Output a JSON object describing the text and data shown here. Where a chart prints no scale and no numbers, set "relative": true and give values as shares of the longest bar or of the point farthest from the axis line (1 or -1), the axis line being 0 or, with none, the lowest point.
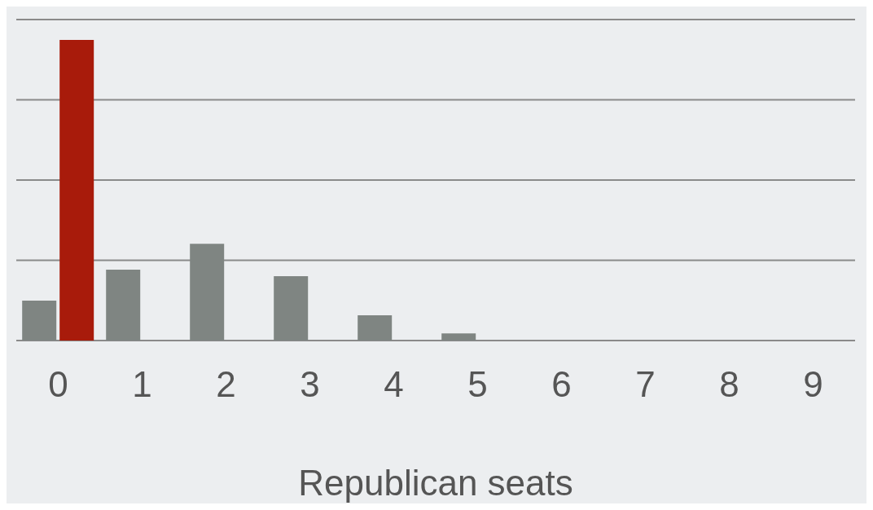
{
  "chart_data": {
    "type": "bar",
    "xlabel": "Republican seats",
    "categories": [
      "0",
      "1",
      "2",
      "3",
      "4",
      "5",
      "6",
      "7",
      "8",
      "9"
    ],
    "relative": true,
    "grid": "y",
    "legend": false,
    "series": [
      {
        "color": "#7f8582",
        "values": [
          0.133,
          0.236,
          0.322,
          0.214,
          0.084,
          0.024,
          0,
          0,
          0,
          0
        ]
      },
      {
        "color": "#a81b0b",
        "values": [
          1,
          null,
          null,
          null,
          null,
          null,
          null,
          null,
          null,
          null
        ]
      }
    ]
  }
}
